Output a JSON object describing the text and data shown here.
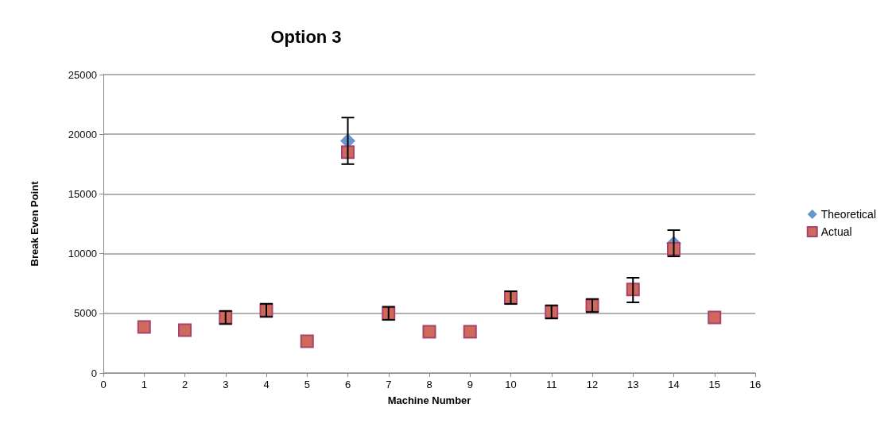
{
  "chart_data": {
    "type": "scatter",
    "title": "Option 3",
    "xlabel": "Machine Number",
    "ylabel": "Break Even Point",
    "x": [
      1,
      2,
      3,
      4,
      5,
      6,
      7,
      8,
      9,
      10,
      11,
      12,
      13,
      14,
      15
    ],
    "series": [
      {
        "name": "Theoretical",
        "color": "#6a96cf",
        "marker": "diamond",
        "values": [
          null,
          null,
          null,
          null,
          null,
          19450,
          null,
          null,
          null,
          null,
          null,
          null,
          null,
          10850,
          null
        ]
      },
      {
        "name": "Actual",
        "color": "#cf6a5a",
        "marker": "square",
        "values": [
          3860,
          3590,
          4650,
          5250,
          2660,
          18500,
          4990,
          3460,
          3460,
          6320,
          5120,
          5650,
          7000,
          10400,
          4650
        ],
        "errors": [
          null,
          null,
          [
            4100,
            5200
          ],
          [
            4700,
            5800
          ],
          null,
          [
            17500,
            21400
          ],
          [
            4450,
            5550
          ],
          null,
          null,
          [
            5780,
            6850
          ],
          [
            4570,
            5670
          ],
          [
            5100,
            6200
          ],
          [
            5920,
            7980
          ],
          [
            9770,
            11970
          ],
          null
        ]
      }
    ],
    "xlim": [
      0,
      16
    ],
    "xticks": [
      0,
      1,
      2,
      3,
      4,
      5,
      6,
      7,
      8,
      9,
      10,
      11,
      12,
      13,
      14,
      15,
      16
    ],
    "ylim": [
      0,
      25000
    ],
    "yticks": [
      0,
      5000,
      10000,
      15000,
      20000,
      25000
    ],
    "grid": "y",
    "legend": "right"
  }
}
